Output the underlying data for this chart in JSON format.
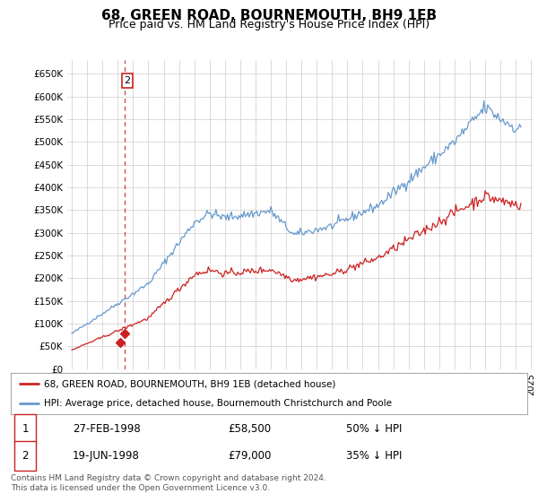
{
  "title": "68, GREEN ROAD, BOURNEMOUTH, BH9 1EB",
  "subtitle": "Price paid vs. HM Land Registry's House Price Index (HPI)",
  "title_fontsize": 11,
  "subtitle_fontsize": 9,
  "ylim": [
    0,
    680000
  ],
  "yticks": [
    0,
    50000,
    100000,
    150000,
    200000,
    250000,
    300000,
    350000,
    400000,
    450000,
    500000,
    550000,
    600000,
    650000
  ],
  "ytick_labels": [
    "£0",
    "£50K",
    "£100K",
    "£150K",
    "£200K",
    "£250K",
    "£300K",
    "£350K",
    "£400K",
    "£450K",
    "£500K",
    "£550K",
    "£600K",
    "£650K"
  ],
  "background_color": "#ffffff",
  "grid_color": "#cccccc",
  "hpi_color": "#6699cc",
  "price_color": "#cc2222",
  "legend_entries": [
    "68, GREEN ROAD, BOURNEMOUTH, BH9 1EB (detached house)",
    "HPI: Average price, detached house, Bournemouth Christchurch and Poole"
  ],
  "table_data": [
    [
      "1",
      "27-FEB-1998",
      "£58,500",
      "50% ↓ HPI"
    ],
    [
      "2",
      "19-JUN-1998",
      "£79,000",
      "35% ↓ HPI"
    ]
  ],
  "footnote": "Contains HM Land Registry data © Crown copyright and database right 2024.\nThis data is licensed under the Open Government Licence v3.0.",
  "sale_points": [
    {
      "year": 1998.15,
      "price": 58500,
      "label": "1"
    },
    {
      "year": 1998.47,
      "price": 79000,
      "label": "2"
    }
  ],
  "dashed_line_x": 1998.47,
  "xlim": [
    1994.7,
    2025.1
  ],
  "xtick_start": 1995,
  "xtick_end": 2025
}
